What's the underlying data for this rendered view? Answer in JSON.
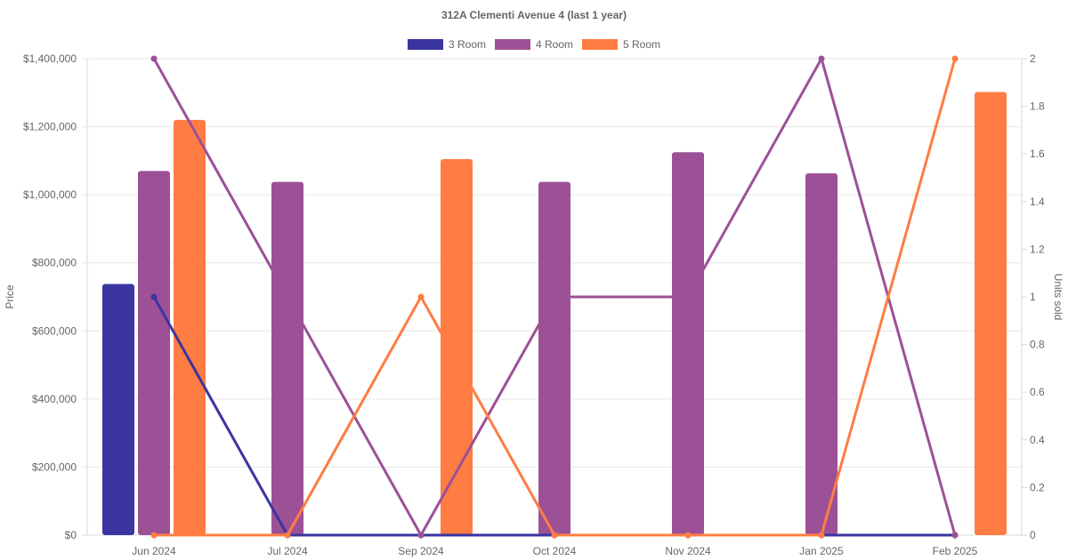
{
  "chart_data": {
    "type": "bar",
    "title": "312A Clementi Avenue 4 (last 1 year)",
    "categories": [
      "Jun 2024",
      "Jul 2024",
      "Sep 2024",
      "Oct 2024",
      "Nov 2024",
      "Jan 2025",
      "Feb 2025"
    ],
    "ylabel": "Price",
    "y2label": "Units sold",
    "ylim": [
      0,
      1400000
    ],
    "y2lim": [
      0,
      2
    ],
    "yticks": [
      "$0",
      "$200,000",
      "$400,000",
      "$600,000",
      "$800,000",
      "$1,000,000",
      "$1,200,000",
      "$1,400,000"
    ],
    "y2ticks": [
      "0",
      "0.2",
      "0.4",
      "0.6",
      "0.8",
      "1",
      "1.2",
      "1.4",
      "1.6",
      "1.8",
      "2"
    ],
    "legend_position": "top",
    "grid": true,
    "series": [
      {
        "name": "3 Room",
        "color": "#3a35a0",
        "price": [
          738000,
          null,
          null,
          null,
          null,
          null,
          null
        ],
        "units": [
          1,
          0,
          0,
          0,
          0,
          0,
          0
        ]
      },
      {
        "name": "4 Room",
        "color": "#9c5196",
        "price": [
          1070000,
          1038000,
          null,
          1038000,
          1125000,
          1063000,
          null
        ],
        "units": [
          2,
          1,
          0,
          1,
          1,
          2,
          0
        ]
      },
      {
        "name": "5 Room",
        "color": "#ff7c43",
        "price": [
          1220000,
          null,
          1105000,
          null,
          null,
          null,
          1302000
        ],
        "units": [
          0,
          0,
          1,
          0,
          0,
          0,
          2
        ]
      }
    ]
  }
}
